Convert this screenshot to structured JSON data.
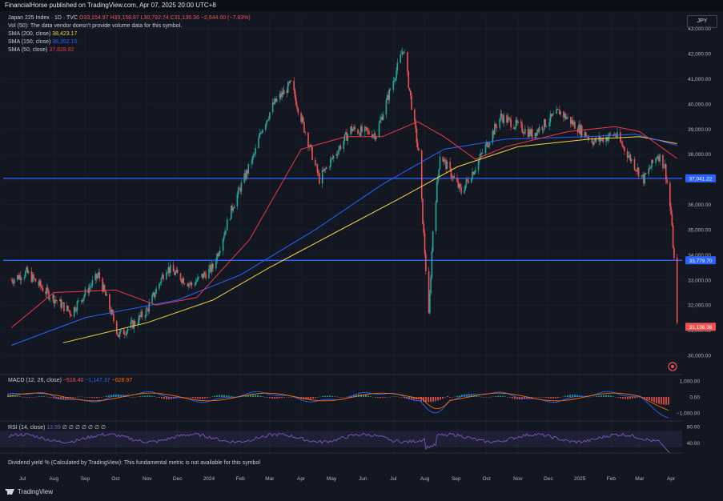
{
  "header": {
    "published": "FinancialHorse published on TradingView.com, Apr 07, 2025 20:00 UTC+8"
  },
  "legend": {
    "symbol": "Japan 225 Index · 1D · TVC",
    "ohlc": "O33,154.97 H33,158.87 L30,792.74 C31,136.36 −2,644.00 (−7.83%)",
    "vol": "Vol (50): The data vendor doesn't provide volume data for this symbol.",
    "sma200_label": "SMA (200, close)",
    "sma200_value": "38,423.17",
    "sma150_label": "SMA (150, close)",
    "sma150_value": "38,352.10",
    "sma50_label": "SMA (50, close)",
    "sma50_value": "37,828.82"
  },
  "currency": "JPY",
  "macd_legend": {
    "label": "MACD (12, 26, close)",
    "v1": "−518.40",
    "v2": "−1,147.37",
    "v3": "−628.97"
  },
  "rsi_legend": {
    "label": "RSI (14, close)",
    "value": "13.99",
    "rest": "∅ ∅ ∅ ∅ ∅ ∅ ∅"
  },
  "dividend_note": "Dividend yield % (Calculated by TradingView): This fundamental metric is not available for this symbol",
  "footer": {
    "brand": "TradingView"
  },
  "colors": {
    "background": "#131722",
    "up": "#26a69a",
    "down": "#ef5350",
    "sma200": "#f0d43a",
    "sma150": "#2962ff",
    "sma50": "#f23645",
    "hline": "#2962ff",
    "rsi": "#7e57c2",
    "grid": "#1e2230"
  },
  "chart_data": [
    {
      "type": "candlestick",
      "title": "Japan 225 Index · 1D · TVC",
      "x_ticks": [
        "Jul",
        "Aug",
        "Sep",
        "Oct",
        "Nov",
        "Dec",
        "2024",
        "Feb",
        "Mar",
        "Apr",
        "May",
        "Jun",
        "Jul",
        "Aug",
        "Sep",
        "Oct",
        "Nov",
        "Dec",
        "2025",
        "Feb",
        "Mar",
        "Apr"
      ],
      "y_ticks": [
        30000,
        31000,
        32000,
        33000,
        34000,
        35000,
        36000,
        37000,
        38000,
        39000,
        40000,
        41000,
        42000,
        43000
      ],
      "ylim": [
        29300,
        43500
      ],
      "price_path": {
        "dates": [
          "2023-06-20",
          "2023-07-05",
          "2023-07-25",
          "2023-08-18",
          "2023-09-14",
          "2023-10-04",
          "2023-10-20",
          "2023-11-01",
          "2023-11-20",
          "2023-12-15",
          "2024-01-05",
          "2024-01-25",
          "2024-02-15",
          "2024-02-22",
          "2024-03-05",
          "2024-03-22",
          "2024-04-19",
          "2024-05-20",
          "2024-06-14",
          "2024-07-11",
          "2024-07-26",
          "2024-08-05",
          "2024-08-09",
          "2024-08-16",
          "2024-09-06",
          "2024-09-20",
          "2024-10-15",
          "2024-11-15",
          "2024-12-12",
          "2025-01-15",
          "2025-02-05",
          "2025-02-25",
          "2025-03-05",
          "2025-03-19",
          "2025-03-26",
          "2025-04-01",
          "2025-04-04",
          "2025-04-07"
        ],
        "close": [
          33000,
          33300,
          32500,
          31700,
          33200,
          30800,
          31300,
          31800,
          33500,
          32800,
          33500,
          36000,
          38000,
          39000,
          40000,
          40800,
          37000,
          39000,
          38800,
          42224,
          38000,
          31500,
          35000,
          38000,
          36500,
          37500,
          39500,
          38800,
          39700,
          38500,
          38800,
          37500,
          37000,
          38000,
          37500,
          35600,
          33800,
          31136.36
        ]
      },
      "horizontal_levels": [
        37041.22,
        33779.7
      ],
      "series": [
        {
          "name": "SMA (200, close)",
          "last": 38423.17,
          "color": "#f0d43a",
          "dates": [
            "2023-08-10",
            "2023-11-01",
            "2024-01-05",
            "2024-03-01",
            "2024-05-10",
            "2024-07-10",
            "2024-09-02",
            "2024-11-01",
            "2025-01-10",
            "2025-03-01",
            "2025-04-07"
          ],
          "values": [
            30500,
            31300,
            32200,
            33500,
            35000,
            36300,
            37500,
            38300,
            38600,
            38700,
            38423.17
          ]
        },
        {
          "name": "SMA (150, close)",
          "last": 38352.1,
          "color": "#2962ff",
          "dates": [
            "2023-06-20",
            "2023-09-01",
            "2023-12-01",
            "2024-02-01",
            "2024-04-15",
            "2024-06-20",
            "2024-08-20",
            "2024-10-20",
            "2025-01-10",
            "2025-02-25",
            "2025-04-07"
          ],
          "values": [
            30400,
            31500,
            32200,
            33200,
            35000,
            36800,
            38200,
            38600,
            38700,
            38800,
            38352.1
          ]
        },
        {
          "name": "SMA (50, close)",
          "last": 37828.82,
          "color": "#f23645",
          "dates": [
            "2023-06-20",
            "2023-08-01",
            "2023-10-01",
            "2023-11-10",
            "2023-12-20",
            "2024-02-10",
            "2024-04-01",
            "2024-05-15",
            "2024-06-20",
            "2024-07-25",
            "2024-08-20",
            "2024-09-20",
            "2024-10-20",
            "2024-12-20",
            "2025-02-05",
            "2025-03-01",
            "2025-04-07"
          ],
          "values": [
            31100,
            32500,
            32600,
            32000,
            32300,
            34600,
            38200,
            38700,
            38700,
            39300,
            38700,
            37800,
            38300,
            38900,
            39100,
            38900,
            37828.82
          ]
        }
      ]
    },
    {
      "type": "bar",
      "title": "MACD (12, 26, close)",
      "y_ticks": [
        1000,
        0,
        -1000
      ],
      "ylim": [
        -1400,
        1300
      ],
      "values_last": {
        "macd": -1147.37,
        "signal": -628.97,
        "histogram": -518.4
      }
    },
    {
      "type": "line",
      "title": "RSI (14, close)",
      "y_ticks": [
        80,
        40
      ],
      "ylim": [
        20,
        90
      ],
      "last": 13.99
    }
  ]
}
